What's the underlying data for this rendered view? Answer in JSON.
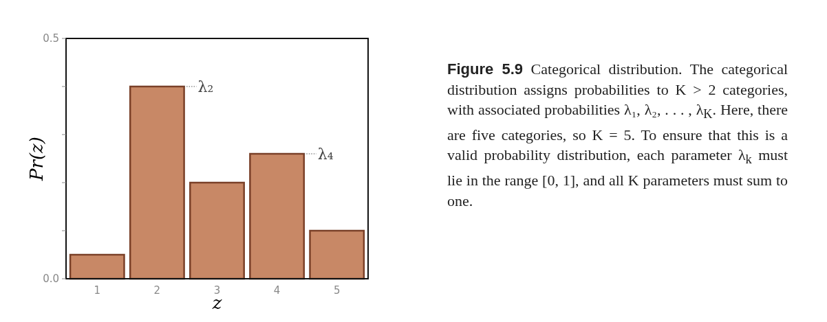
{
  "chart_data": {
    "type": "bar",
    "title": "Figure 5.9",
    "xlabel": "z",
    "ylabel": "Pr(z)",
    "categories": [
      "1",
      "2",
      "3",
      "4",
      "5"
    ],
    "values": [
      0.05,
      0.4,
      0.2,
      0.26,
      0.1
    ],
    "color": "#c88866",
    "ylim": [
      0,
      0.5
    ],
    "yticks": [
      {
        "value": 0,
        "label": "0.0"
      },
      {
        "value": 0.1,
        "label": null
      },
      {
        "value": 0.2,
        "label": null
      },
      {
        "value": 0.3,
        "label": null
      },
      {
        "value": 0.4,
        "label": null
      },
      {
        "value": 0.5,
        "label": "0.5"
      }
    ],
    "annotations": [
      {
        "text": "λ₂",
        "x": "2",
        "y": 0.4
      },
      {
        "text": "λ₄",
        "x": "4",
        "y": 0.26
      },
      "Categorical distribution. The categorical distribution assigns probabilities to K > 2 categories, with associated probabilities λ₁, λ₂, . . . , λ$_{K}$. Here, there are five categories, so K = 5. To ensure that this is a valid probability distribution, each parameter λ$_{k}$ must lie in the range [0, 1], and all K parameters must sum to one."
    ]
  }
}
